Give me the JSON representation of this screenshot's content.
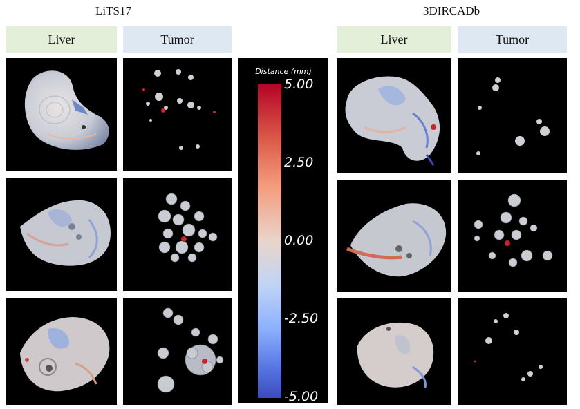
{
  "datasets": {
    "left": {
      "title": "LiTS17",
      "liver_header": "Liver",
      "tumor_header": "Tumor"
    },
    "right": {
      "title": "3DIRCADb",
      "liver_header": "Liver",
      "tumor_header": "Tumor"
    }
  },
  "colorbar": {
    "title": "Distance (mm)",
    "ticks": [
      "5.00",
      "2.50",
      "0.00",
      "-2.50",
      "-5.00"
    ],
    "colormap": [
      "#b40426",
      "#f49a7b",
      "#e9d5cb",
      "#8db0fe",
      "#3b4cc0"
    ]
  }
}
